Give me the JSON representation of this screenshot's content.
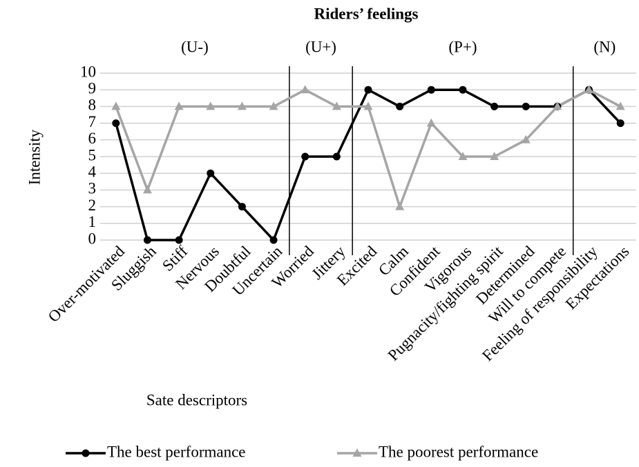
{
  "chart_data": {
    "type": "line",
    "title": "Riders’ feelings",
    "xlabel": "Sate descriptors",
    "ylabel": "Intensity",
    "categories": [
      "Over-motivated",
      "Sluggish",
      "Stiff",
      "Nervous",
      "Doubtful",
      "Uncertain",
      "Worried",
      "Jittery",
      "Excited",
      "Calm",
      "Confident",
      "Vigorous",
      "Pugnacity/fighting spirit",
      "Determined",
      "Will to compete",
      "Feeling of responsibility",
      "Expectations"
    ],
    "series": [
      {
        "name": "The best performance",
        "color": "#000000",
        "marker": "circle",
        "values": [
          7,
          0,
          0,
          4,
          2,
          0,
          5,
          5,
          9,
          8,
          9,
          9,
          8,
          8,
          8,
          9,
          7
        ]
      },
      {
        "name": "The poorest performance",
        "color": "#a5a5a5",
        "marker": "triangle",
        "values": [
          8,
          3,
          8,
          8,
          8,
          8,
          9,
          8,
          8,
          2,
          7,
          5,
          5,
          6,
          8,
          9,
          8
        ]
      }
    ],
    "groups": [
      {
        "label": "(U-)",
        "count": 6
      },
      {
        "label": "(U+)",
        "count": 2
      },
      {
        "label": "(P+)",
        "count": 7
      },
      {
        "label": "(N)",
        "count": 2
      }
    ],
    "ylim": [
      0,
      10
    ],
    "yticks": [
      0,
      1,
      2,
      3,
      4,
      5,
      6,
      7,
      8,
      9,
      10
    ],
    "grid": true,
    "legend": "bottom"
  }
}
